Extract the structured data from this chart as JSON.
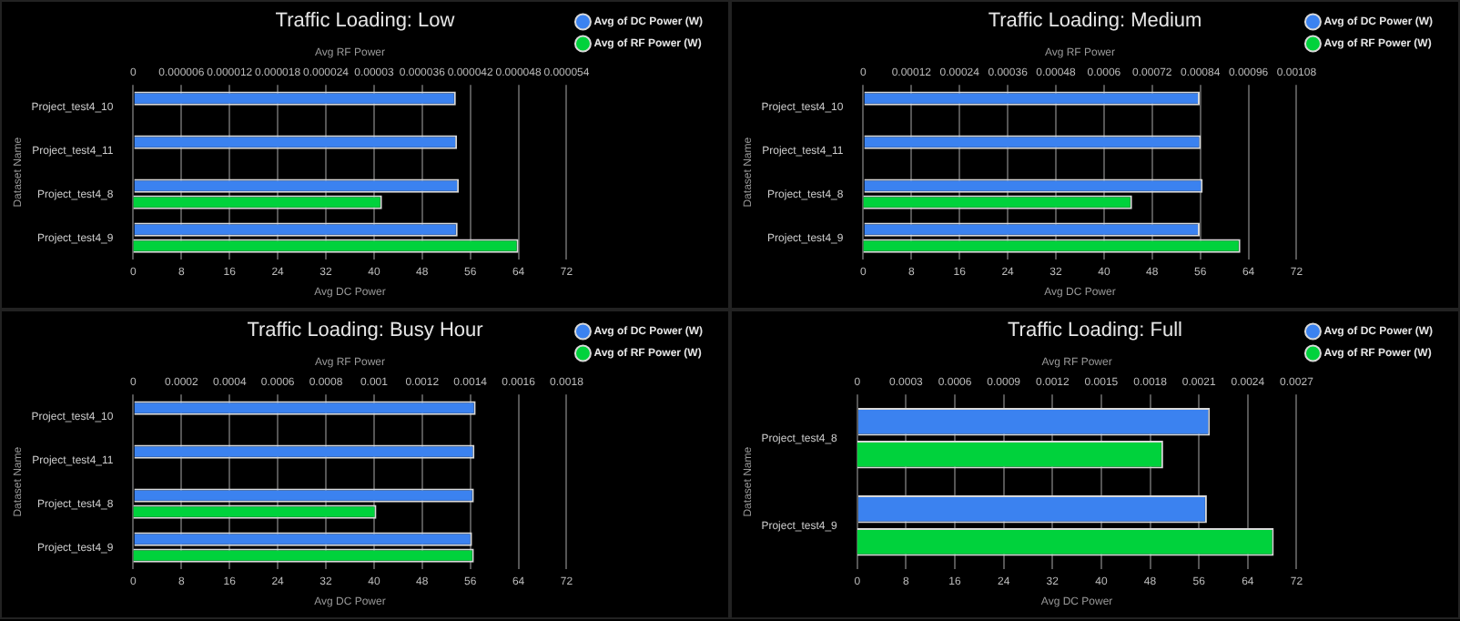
{
  "chart_data": [
    {
      "type": "bar",
      "orientation": "horizontal",
      "title": "Traffic Loading: Low",
      "xlabel": "Avg DC Power",
      "x2label": "Avg RF Power",
      "ylabel": "Dataset Name",
      "categories": [
        "Project_test4_10",
        "Project_test4_11",
        "Project_test4_8",
        "Project_test4_9"
      ],
      "series": [
        {
          "name": "Avg of DC Power (W)",
          "color": "#3b82f0",
          "values": [
            53.6,
            53.8,
            54.1,
            53.9
          ]
        },
        {
          "name": "Avg of RF Power (W)",
          "color": "#00d23c",
          "axis": "x2",
          "values": [
            null,
            null,
            3.1e-05,
            4.8e-05
          ]
        }
      ],
      "xlim": [
        0,
        72
      ],
      "xticks": [
        0,
        8,
        16,
        24,
        32,
        40,
        48,
        56,
        64,
        72
      ],
      "x2lim": [
        0,
        5.4e-05
      ],
      "x2ticks": [
        0,
        {
          "value": 6e-06,
          "label": "0.000006"
        },
        {
          "value": 1.2e-05,
          "label": "0.000012"
        },
        {
          "value": 1.8e-05,
          "label": "0.000018"
        },
        {
          "value": 2.4e-05,
          "label": "0.000024"
        },
        {
          "value": 3e-05,
          "label": "0.00003"
        },
        {
          "value": 3.6e-05,
          "label": "0.000036"
        },
        {
          "value": 4.2e-05,
          "label": "0.000042"
        },
        {
          "value": 4.8e-05,
          "label": "0.000048"
        },
        {
          "value": 5.4e-05,
          "label": "0.000054"
        }
      ],
      "grid": "x",
      "legend": "top right"
    },
    {
      "type": "bar",
      "orientation": "horizontal",
      "title": "Traffic Loading: Medium",
      "xlabel": "Avg DC Power",
      "x2label": "Avg RF Power",
      "ylabel": "Dataset Name",
      "categories": [
        "Project_test4_10",
        "Project_test4_11",
        "Project_test4_8",
        "Project_test4_9"
      ],
      "series": [
        {
          "name": "Avg of DC Power (W)",
          "color": "#3b82f0",
          "values": [
            55.9,
            56.1,
            56.4,
            55.9
          ]
        },
        {
          "name": "Avg of RF Power (W)",
          "color": "#00d23c",
          "axis": "x2",
          "values": [
            null,
            null,
            0.00067,
            0.00094
          ]
        }
      ],
      "xlim": [
        0,
        72
      ],
      "xticks": [
        0,
        8,
        16,
        24,
        32,
        40,
        48,
        56,
        64,
        72
      ],
      "x2lim": [
        0,
        0.00108
      ],
      "x2ticks": [
        0,
        0.00012,
        0.00024,
        0.00036,
        0.00048,
        0.0006,
        0.00072,
        0.00084,
        0.00096,
        0.00108
      ],
      "grid": "x",
      "legend": "top right"
    },
    {
      "type": "bar",
      "orientation": "horizontal",
      "title": "Traffic Loading: Busy Hour",
      "xlabel": "Avg DC Power",
      "x2label": "Avg RF Power",
      "ylabel": "Dataset Name",
      "categories": [
        "Project_test4_10",
        "Project_test4_11",
        "Project_test4_8",
        "Project_test4_9"
      ],
      "series": [
        {
          "name": "Avg of DC Power (W)",
          "color": "#3b82f0",
          "values": [
            56.9,
            56.7,
            56.6,
            56.3
          ]
        },
        {
          "name": "Avg of RF Power (W)",
          "color": "#00d23c",
          "axis": "x2",
          "values": [
            null,
            null,
            0.00101,
            0.001415
          ]
        }
      ],
      "xlim": [
        0,
        72
      ],
      "xticks": [
        0,
        8,
        16,
        24,
        32,
        40,
        48,
        56,
        64,
        72
      ],
      "x2lim": [
        0,
        0.0018
      ],
      "x2ticks": [
        0,
        0.0002,
        0.0004,
        0.0006,
        0.0008,
        0.001,
        0.0012,
        0.0014,
        0.0016,
        0.0018
      ],
      "grid": "x",
      "legend": "top right"
    },
    {
      "type": "bar",
      "orientation": "horizontal",
      "title": "Traffic Loading: Full",
      "xlabel": "Avg DC Power",
      "x2label": "Avg RF Power",
      "ylabel": "Dataset Name",
      "categories": [
        "Project_test4_8",
        "Project_test4_9"
      ],
      "series": [
        {
          "name": "Avg of DC Power (W)",
          "color": "#3b82f0",
          "values": [
            57.8,
            57.3
          ]
        },
        {
          "name": "Avg of RF Power (W)",
          "color": "#00d23c",
          "axis": "x2",
          "values": [
            0.00188,
            0.00256
          ]
        }
      ],
      "xlim": [
        0,
        72
      ],
      "xticks": [
        0,
        8,
        16,
        24,
        32,
        40,
        48,
        56,
        64,
        72
      ],
      "x2lim": [
        0,
        0.0027
      ],
      "x2ticks": [
        0,
        0.0003,
        0.0006,
        0.0009,
        0.0012,
        0.0015,
        0.0018,
        0.0021,
        0.0024,
        0.0027
      ],
      "grid": "x",
      "legend": "top right"
    }
  ]
}
